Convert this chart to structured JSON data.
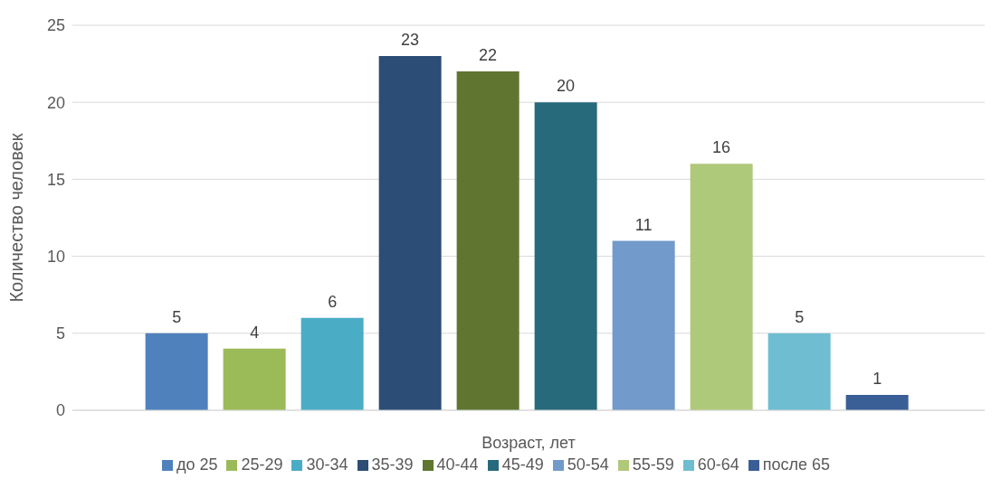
{
  "chart_data": {
    "type": "bar",
    "xlabel": "Возраст, лет",
    "ylabel": "Количество человек",
    "categories": [
      null
    ],
    "series": [
      {
        "name": "до 25",
        "color": "#4f81bd",
        "values": [
          5
        ]
      },
      {
        "name": "25-29",
        "color": "#9bbb59",
        "values": [
          4
        ]
      },
      {
        "name": "30-34",
        "color": "#4bacc6",
        "values": [
          6
        ]
      },
      {
        "name": "35-39",
        "color": "#2c4d75",
        "values": [
          23
        ]
      },
      {
        "name": "40-44",
        "color": "#5f7530",
        "values": [
          22
        ]
      },
      {
        "name": "45-49",
        "color": "#276a7c",
        "values": [
          20
        ]
      },
      {
        "name": "50-54",
        "color": "#729aca",
        "values": [
          11
        ]
      },
      {
        "name": "55-59",
        "color": "#afc97a",
        "values": [
          16
        ]
      },
      {
        "name": "60-64",
        "color": "#6fbdd1",
        "values": [
          5
        ]
      },
      {
        "name": "после 65",
        "color": "#3a5f96",
        "values": [
          1
        ]
      }
    ],
    "ylim": [
      0,
      25
    ],
    "yticks": [
      0,
      5,
      10,
      15,
      20,
      25
    ],
    "grid": "y",
    "legend": "bottom",
    "data_labels": true
  }
}
